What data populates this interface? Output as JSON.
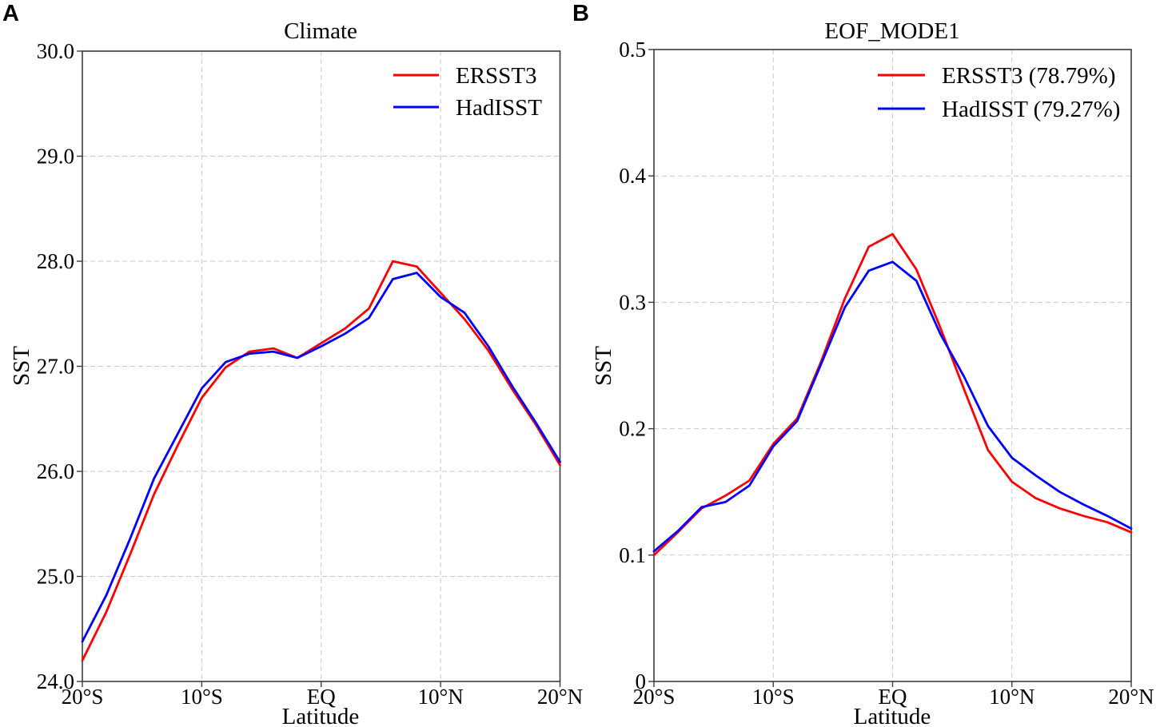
{
  "figure": {
    "background_color": "#ffffff",
    "text_color": "#000000",
    "grid_color": "#c9c9c9",
    "axis_color": "#3c3c3c"
  },
  "chart_data": [
    {
      "type": "line",
      "panel_label": "A",
      "title": "Climate",
      "xlabel": "Latitude",
      "ylabel": "SST",
      "xlim": [
        -20,
        20
      ],
      "ylim": [
        24.0,
        30.0
      ],
      "grid": true,
      "legend_position": "upper right",
      "xtick_values": [
        -20,
        -10,
        0,
        10,
        20
      ],
      "xtick_labels": [
        "20°S",
        "10°S",
        "EQ",
        "10°N",
        "20°N"
      ],
      "ytick_values": [
        30.0,
        29.0,
        28.0,
        27.0,
        26.0,
        25.0,
        24.0
      ],
      "ytick_labels": [
        "30.0",
        "29.0",
        "28.0",
        "27.0",
        "26.0",
        "25.0",
        "24.0"
      ],
      "x": [
        -20,
        -18,
        -16,
        -14,
        -12,
        -10,
        -8,
        -6,
        -4,
        -2,
        0,
        2,
        4,
        6,
        8,
        10,
        12,
        14,
        16,
        18,
        20
      ],
      "series": [
        {
          "name": "ERSST3",
          "color": "#ff0000",
          "values": [
            24.2,
            24.66,
            25.21,
            25.78,
            26.25,
            26.7,
            26.99,
            27.14,
            27.17,
            27.08,
            27.22,
            27.36,
            27.55,
            28.0,
            27.95,
            27.7,
            27.45,
            27.15,
            26.78,
            26.44,
            26.06
          ]
        },
        {
          "name": "HadISST",
          "color": "#0000ff",
          "values": [
            24.38,
            24.82,
            25.36,
            25.93,
            26.36,
            26.79,
            27.04,
            27.12,
            27.14,
            27.08,
            27.19,
            27.31,
            27.46,
            27.83,
            27.89,
            27.66,
            27.51,
            27.19,
            26.81,
            26.46,
            26.09
          ]
        }
      ]
    },
    {
      "type": "line",
      "panel_label": "B",
      "title": "EOF_MODE1",
      "xlabel": "Latitude",
      "ylabel": "SST",
      "xlim": [
        -20,
        20
      ],
      "ylim": [
        0.0,
        0.5
      ],
      "grid": true,
      "legend_position": "upper right",
      "xtick_values": [
        -20,
        -10,
        0,
        10,
        20
      ],
      "xtick_labels": [
        "20°S",
        "10°S",
        "EQ",
        "10°N",
        "20°N"
      ],
      "ytick_values": [
        0.5,
        0.4,
        0.3,
        0.2,
        0.1,
        0.0
      ],
      "ytick_labels": [
        "0.5",
        "0.4",
        "0.3",
        "0.2",
        "0.1",
        "0"
      ],
      "x": [
        -20,
        -18,
        -16,
        -14,
        -12,
        -10,
        -8,
        -6,
        -4,
        -2,
        0,
        2,
        4,
        6,
        8,
        10,
        12,
        14,
        16,
        18,
        20
      ],
      "series": [
        {
          "name": "ERSST3 (78.79%)",
          "color": "#ff0000",
          "values": [
            0.1,
            0.118,
            0.137,
            0.147,
            0.159,
            0.188,
            0.208,
            0.253,
            0.303,
            0.344,
            0.354,
            0.326,
            0.28,
            0.231,
            0.183,
            0.158,
            0.145,
            0.137,
            0.131,
            0.126,
            0.118
          ]
        },
        {
          "name": "HadISST (79.27%)",
          "color": "#0000ff",
          "values": [
            0.103,
            0.119,
            0.138,
            0.142,
            0.155,
            0.186,
            0.206,
            0.251,
            0.296,
            0.325,
            0.332,
            0.317,
            0.275,
            0.241,
            0.202,
            0.177,
            0.163,
            0.15,
            0.14,
            0.131,
            0.121
          ]
        }
      ]
    }
  ]
}
